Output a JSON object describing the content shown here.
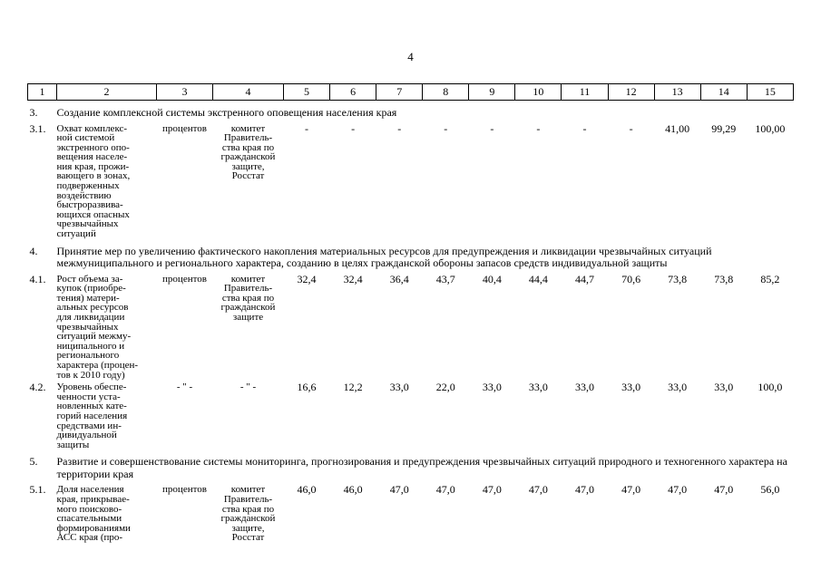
{
  "page": {
    "number": "4"
  },
  "colors": {
    "text": "#000000",
    "background": "#ffffff",
    "table_border": "#000000"
  },
  "table": {
    "header_cols": [
      "1",
      "2",
      "3",
      "4",
      "5",
      "6",
      "7",
      "8",
      "9",
      "10",
      "11",
      "12",
      "13",
      "14",
      "15"
    ],
    "sections": [
      {
        "num": "3.",
        "title": "Создание комплексной системы экстренного оповещения населения края",
        "rows": [
          {
            "num": "3.1.",
            "name": "Охват комплекс-\nной системой\nэкстренного опо-\nвещения населе-\nния края, прожи-\nвающего в зонах,\nподверженных\nвоздействию\nбыстроразвива-\nющихся опасных\nчрезвычайных\nситуаций",
            "unit": "процентов",
            "responsible": "комитет\nПравитель-\nства края по\nгражданской\nзащите,\nРосстат",
            "values": [
              "-",
              "-",
              "-",
              "-",
              "-",
              "-",
              "-",
              "-",
              "41,00",
              "99,29",
              "100,00"
            ]
          }
        ]
      },
      {
        "num": "4.",
        "title": "Принятие мер по увеличению фактического накопления материальных ресурсов для предупреждения и ликвидации чрезвычайных ситуаций межмуниципального и регионального характера, созданию в целях гражданской обороны запасов средств индивидуальной защиты",
        "rows": [
          {
            "num": "4.1.",
            "name": "Рост объема за-\nкупок (приобре-\nтения) матери-\nальных ресурсов\nдля ликвидации\nчрезвычайных\nситуаций межму-\nниципального и\nрегионального\nхарактера (процен-\nтов к 2010 году)",
            "unit": "процентов",
            "responsible": "комитет\nПравитель-\nства края по\nгражданской\nзащите",
            "values": [
              "32,4",
              "32,4",
              "36,4",
              "43,7",
              "40,4",
              "44,4",
              "44,7",
              "70,6",
              "73,8",
              "73,8",
              "85,2"
            ]
          },
          {
            "num": "4.2.",
            "name": "Уровень обеспе-\nченности уста-\nновленных кате-\nгорий населения\nсредствами ин-\nдивидуальной\nзащиты",
            "unit": "- \" -",
            "responsible": "- \" -",
            "values": [
              "16,6",
              "12,2",
              "33,0",
              "22,0",
              "33,0",
              "33,0",
              "33,0",
              "33,0",
              "33,0",
              "33,0",
              "100,0"
            ]
          }
        ]
      },
      {
        "num": "5.",
        "title": "Развитие и совершенствование системы мониторинга, прогнозирования и предупреждения чрезвычайных ситуаций природного и техногенного характера на территории края",
        "rows": [
          {
            "num": "5.1.",
            "name": "Доля населения\nкрая, прикрывае-\nмого поисково-\nспасательными\nформированиями\nАСС края (про-",
            "unit": "процентов",
            "responsible": "комитет\nПравитель-\nства края по\nгражданской\nзащите,\nРосстат",
            "values": [
              "46,0",
              "46,0",
              "47,0",
              "47,0",
              "47,0",
              "47,0",
              "47,0",
              "47,0",
              "47,0",
              "47,0",
              "56,0"
            ]
          }
        ]
      }
    ]
  }
}
